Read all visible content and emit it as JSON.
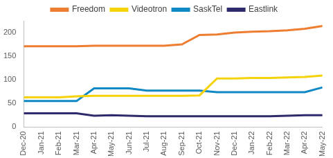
{
  "chart_data": {
    "type": "line",
    "categories": [
      "Dec-20",
      "Jan-21",
      "Feb-21",
      "Mar-21",
      "Apr-21",
      "May-21",
      "Jun-21",
      "Jul-21",
      "Aug-21",
      "Sep-21",
      "Oct-21",
      "Nov-21",
      "Dec-21",
      "Jan-22",
      "Feb-22",
      "Mar-22",
      "Apr-22",
      "May-22"
    ],
    "series": [
      {
        "name": "Freedom",
        "color": "#ED7D31",
        "values": [
          171,
          171,
          171,
          171,
          172,
          172,
          172,
          172,
          172,
          175,
          195,
          196,
          200,
          202,
          203,
          205,
          208,
          214
        ]
      },
      {
        "name": "Videotron",
        "color": "#F5D20A",
        "values": [
          63,
          63,
          63,
          65,
          66,
          66,
          66,
          66,
          66,
          66,
          67,
          103,
          103,
          104,
          104,
          105,
          106,
          109
        ]
      },
      {
        "name": "SaskTel",
        "color": "#1088C4",
        "values": [
          55,
          55,
          55,
          55,
          82,
          82,
          82,
          77,
          77,
          77,
          77,
          74,
          74,
          74,
          74,
          74,
          74,
          84
        ]
      },
      {
        "name": "Eastlink",
        "color": "#2E2A6B",
        "values": [
          29,
          29,
          29,
          29,
          24,
          25,
          24,
          23,
          23,
          23,
          23,
          23,
          23,
          23,
          23,
          24,
          25,
          25
        ]
      }
    ],
    "ylim": [
      0,
      225
    ],
    "yticks": [
      0,
      50,
      100,
      150,
      200
    ],
    "grid": false,
    "legend": "top"
  }
}
